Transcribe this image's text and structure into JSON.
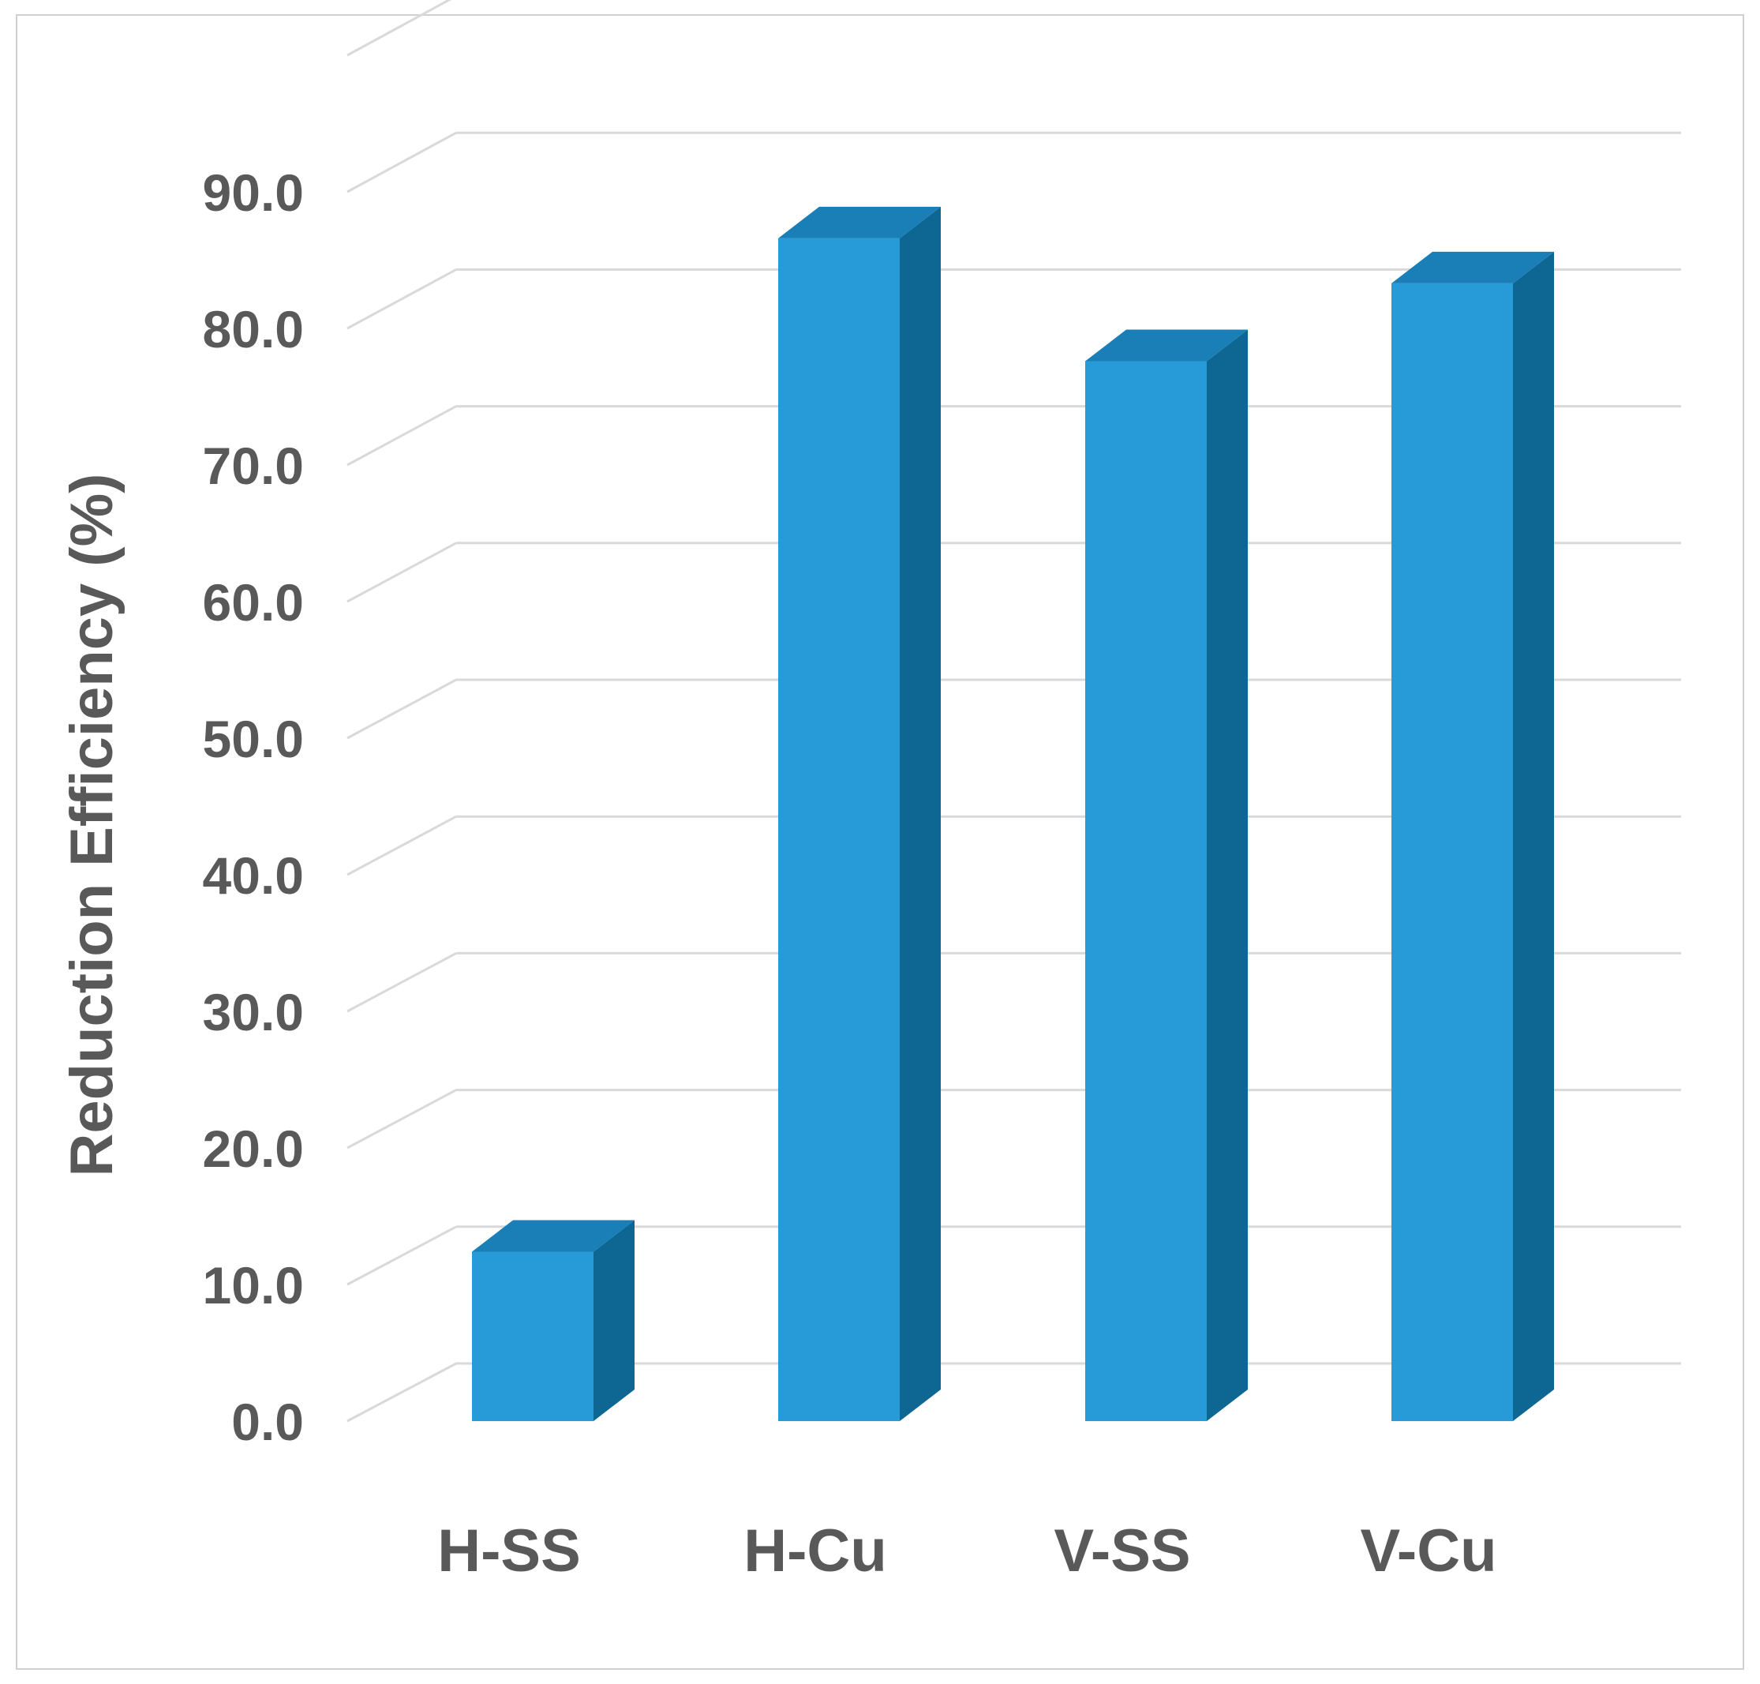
{
  "chart_data": {
    "type": "bar",
    "categories": [
      "H-SS",
      "H-Cu",
      "V-SS",
      "V-Cu"
    ],
    "values": [
      12.4,
      86.6,
      77.6,
      83.3
    ],
    "ylabel": "Reduction Efficiency (%)",
    "xlabel": "",
    "ylim": [
      0,
      90
    ],
    "ytick_labels": [
      "0.0",
      "10.0",
      "20.0",
      "30.0",
      "40.0",
      "50.0",
      "60.0",
      "70.0",
      "80.0",
      "90.0"
    ],
    "grid": true,
    "legend": "none",
    "bar_style": "3d-column",
    "colors": {
      "front": "#279bd8",
      "side": "#0e6693",
      "top": "#1a7fb6",
      "grid": "#d9d9d9",
      "text": "#595959"
    }
  }
}
